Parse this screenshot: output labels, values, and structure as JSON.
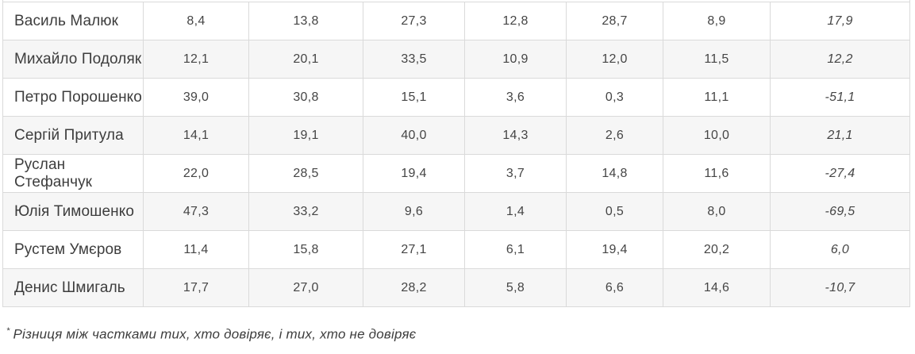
{
  "chart_data": {
    "type": "table",
    "description": "Trust-rating table (percentages, comma decimal separators); column headers are cropped out of view above the screenshot",
    "rows": [
      {
        "name": "Василь Малюк",
        "values": [
          "8,4",
          "13,8",
          "27,3",
          "12,8",
          "28,7",
          "8,9"
        ],
        "balance": "17,9"
      },
      {
        "name": "Михайло Подоляк",
        "values": [
          "12,1",
          "20,1",
          "33,5",
          "10,9",
          "12,0",
          "11,5"
        ],
        "balance": "12,2"
      },
      {
        "name": "Петро Порошенко",
        "values": [
          "39,0",
          "30,8",
          "15,1",
          "3,6",
          "0,3",
          "11,1"
        ],
        "balance": "-51,1"
      },
      {
        "name": "Сергій Притула",
        "values": [
          "14,1",
          "19,1",
          "40,0",
          "14,3",
          "2,6",
          "10,0"
        ],
        "balance": "21,1"
      },
      {
        "name": "Руслан Стефанчук",
        "values": [
          "22,0",
          "28,5",
          "19,4",
          "3,7",
          "14,8",
          "11,6"
        ],
        "balance": "-27,4"
      },
      {
        "name": "Юлія Тимошенко",
        "values": [
          "47,3",
          "33,2",
          "9,6",
          "1,4",
          "0,5",
          "8,0"
        ],
        "balance": "-69,5"
      },
      {
        "name": "Рустем Умєров",
        "values": [
          "11,4",
          "15,8",
          "27,1",
          "6,1",
          "19,4",
          "20,2"
        ],
        "balance": "6,0"
      },
      {
        "name": "Денис Шмигаль",
        "values": [
          "17,7",
          "27,0",
          "28,2",
          "5,8",
          "6,6",
          "14,6"
        ],
        "balance": "-10,7"
      }
    ]
  },
  "footnote": {
    "marker": "*",
    "text": "Різниця між частками тих, хто довіряє, і тих, хто не довіряє"
  },
  "colors": {
    "row_alt_background": "#f6f6f6",
    "border": "#dadada",
    "text": "#3d3d3d"
  }
}
